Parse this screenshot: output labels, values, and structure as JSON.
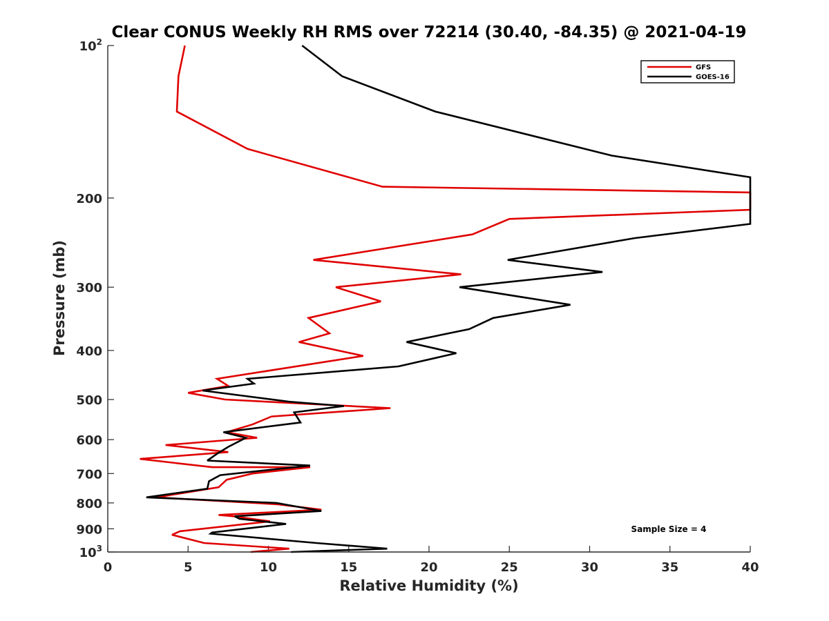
{
  "chart_data": {
    "type": "line",
    "title": "Clear CONUS Weekly RH RMS over 72214 (30.40, -84.35) @ 2021-04-19",
    "xlabel": "Relative Humidity (%)",
    "ylabel": "Pressure (mb)",
    "xlim": [
      0,
      40
    ],
    "ylim": [
      100,
      1000
    ],
    "yscale": "log",
    "yreverse": true,
    "xticks": [
      0,
      5,
      10,
      15,
      20,
      25,
      30,
      35,
      40
    ],
    "xtick_labels": [
      "0",
      "5",
      "10",
      "15",
      "20",
      "25",
      "30",
      "35",
      "40"
    ],
    "yticks": [
      {
        "value": 100,
        "base": "10",
        "exp": "2"
      },
      {
        "value": 200,
        "base": "200",
        "exp": ""
      },
      {
        "value": 300,
        "base": "300",
        "exp": ""
      },
      {
        "value": 400,
        "base": "400",
        "exp": ""
      },
      {
        "value": 500,
        "base": "500",
        "exp": ""
      },
      {
        "value": 600,
        "base": "600",
        "exp": ""
      },
      {
        "value": 700,
        "base": "700",
        "exp": ""
      },
      {
        "value": 800,
        "base": "800",
        "exp": ""
      },
      {
        "value": 900,
        "base": "900",
        "exp": ""
      },
      {
        "value": 1000,
        "base": "10",
        "exp": "3"
      }
    ],
    "legend_position": "top-right",
    "annotation": "Sample Size = 4",
    "series": [
      {
        "name": "GFS",
        "color": "#e00000",
        "points": [
          [
            4.8,
            100
          ],
          [
            4.4,
            115
          ],
          [
            4.3,
            135
          ],
          [
            8.7,
            160
          ],
          [
            17.1,
            190
          ],
          [
            40.0,
            195
          ],
          [
            40.0,
            211
          ],
          [
            25.0,
            220
          ],
          [
            22.7,
            236
          ],
          [
            12.8,
            265
          ],
          [
            22.0,
            283
          ],
          [
            14.2,
            300
          ],
          [
            17.0,
            320
          ],
          [
            12.5,
            345
          ],
          [
            13.8,
            370
          ],
          [
            11.9,
            385
          ],
          [
            15.9,
            410
          ],
          [
            6.8,
            455
          ],
          [
            7.5,
            470
          ],
          [
            5.0,
            485
          ],
          [
            7.3,
            500
          ],
          [
            17.6,
            520
          ],
          [
            10.2,
            540
          ],
          [
            9.0,
            560
          ],
          [
            7.4,
            580
          ],
          [
            9.3,
            595
          ],
          [
            3.6,
            615
          ],
          [
            7.5,
            635
          ],
          [
            2.0,
            655
          ],
          [
            6.5,
            680
          ],
          [
            12.6,
            680
          ],
          [
            9.0,
            700
          ],
          [
            7.4,
            720
          ],
          [
            6.9,
            745
          ],
          [
            3.0,
            780
          ],
          [
            10.6,
            805
          ],
          [
            13.3,
            825
          ],
          [
            6.9,
            845
          ],
          [
            7.8,
            850
          ],
          [
            10.1,
            870
          ],
          [
            4.5,
            910
          ],
          [
            4.0,
            925
          ],
          [
            6.0,
            960
          ],
          [
            11.3,
            985
          ],
          [
            8.9,
            1000
          ]
        ]
      },
      {
        "name": "GOES-16",
        "color": "#000000",
        "points": [
          [
            12.1,
            100
          ],
          [
            14.6,
            115
          ],
          [
            20.4,
            135
          ],
          [
            31.4,
            165
          ],
          [
            40.0,
            182
          ],
          [
            40.0,
            225
          ],
          [
            32.8,
            240
          ],
          [
            24.9,
            265
          ],
          [
            30.8,
            280
          ],
          [
            21.9,
            300
          ],
          [
            28.8,
            325
          ],
          [
            24.0,
            345
          ],
          [
            22.5,
            363
          ],
          [
            18.6,
            385
          ],
          [
            21.7,
            405
          ],
          [
            18.1,
            430
          ],
          [
            8.7,
            455
          ],
          [
            9.1,
            465
          ],
          [
            5.9,
            480
          ],
          [
            11.3,
            505
          ],
          [
            14.7,
            515
          ],
          [
            11.6,
            530
          ],
          [
            12.0,
            555
          ],
          [
            7.2,
            580
          ],
          [
            8.6,
            595
          ],
          [
            7.5,
            620
          ],
          [
            6.8,
            640
          ],
          [
            6.2,
            660
          ],
          [
            12.6,
            675
          ],
          [
            7.0,
            705
          ],
          [
            6.3,
            725
          ],
          [
            6.2,
            750
          ],
          [
            2.4,
            780
          ],
          [
            10.5,
            800
          ],
          [
            13.3,
            830
          ],
          [
            7.9,
            850
          ],
          [
            8.2,
            860
          ],
          [
            11.1,
            880
          ],
          [
            6.5,
            915
          ],
          [
            6.4,
            920
          ],
          [
            13.0,
            960
          ],
          [
            17.4,
            985
          ],
          [
            11.4,
            1000
          ]
        ]
      }
    ]
  }
}
